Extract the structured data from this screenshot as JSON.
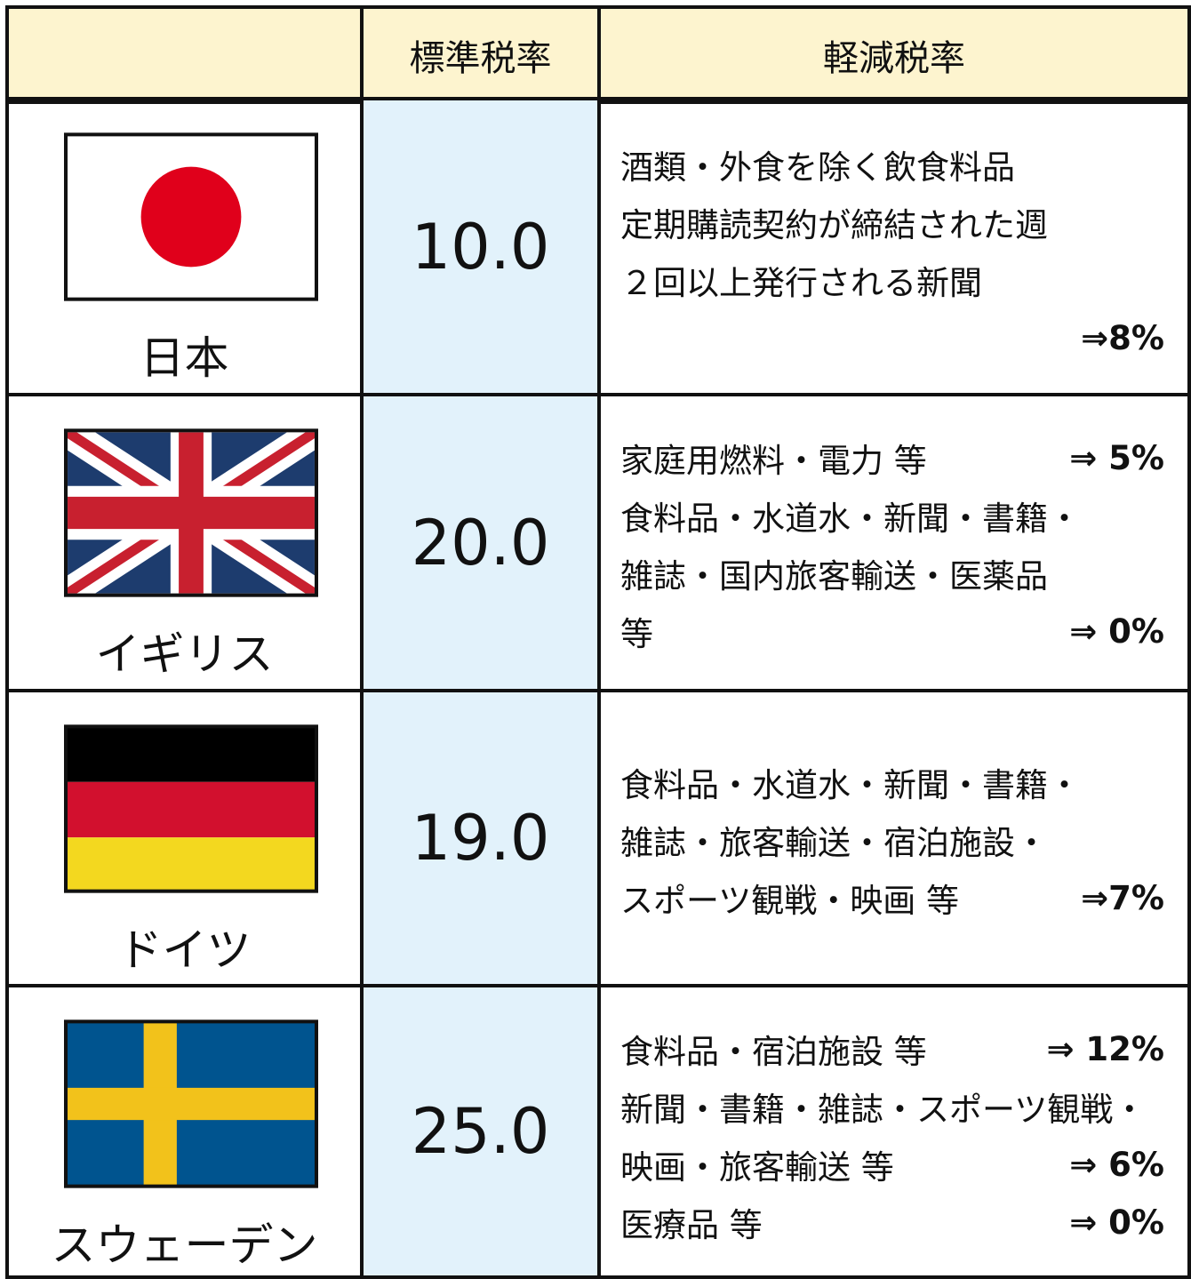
{
  "table": {
    "header": [
      "標準税率",
      "軽減税率"
    ],
    "rows": [
      {
        "country": "日本",
        "standard": "10.0",
        "reduced": [
          {
            "text": "酒類・外食を除く飲食料品"
          },
          {
            "text": "定期購読契約が締結された週"
          },
          {
            "text": "２回以上発行される新聞"
          },
          {
            "rate": "⇒8%"
          }
        ]
      },
      {
        "country": "イギリス",
        "standard": "20.0",
        "reduced": [
          {
            "text": "家庭用燃料・電力 等",
            "rate": "⇒ 5%"
          },
          {
            "text": "食料品・水道水・新聞・書籍・"
          },
          {
            "text": "雑誌・国内旅客輸送・医薬品"
          },
          {
            "text": "等",
            "rate": "⇒ 0%"
          }
        ]
      },
      {
        "country": "ドイツ",
        "standard": "19.0",
        "reduced": [
          {
            "text": "食料品・水道水・新聞・書籍・"
          },
          {
            "text": "雑誌・旅客輸送・宿泊施設・"
          },
          {
            "text": "スポーツ観戦・映画 等",
            "rate": "⇒7%"
          }
        ]
      },
      {
        "country": "スウェーデン",
        "standard": "25.0",
        "reduced": [
          {
            "text": "食料品・宿泊施設 等",
            "rate": "⇒ 12%"
          },
          {
            "text": "新聞・書籍・雑誌・スポーツ観戦・"
          },
          {
            "text": "映画・旅客輸送 等",
            "rate": "⇒ 6%"
          },
          {
            "text": "医療品 等",
            "rate": "⇒ 0%"
          }
        ]
      }
    ]
  }
}
